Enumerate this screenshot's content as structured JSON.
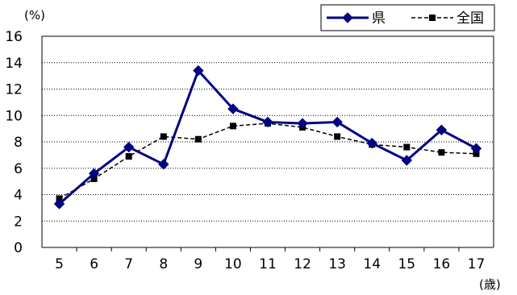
{
  "chart_data": {
    "type": "line",
    "y_unit_label": "(%)",
    "x_unit_label": "(歳)",
    "categories": [
      "5",
      "6",
      "7",
      "8",
      "9",
      "10",
      "11",
      "12",
      "13",
      "14",
      "15",
      "16",
      "17"
    ],
    "ylim": [
      0,
      16
    ],
    "y_ticks": [
      "0",
      "2",
      "4",
      "6",
      "8",
      "10",
      "12",
      "14",
      "16"
    ],
    "grid": "horizontal dotted",
    "legend_position": "top-right",
    "series": [
      {
        "name": "県",
        "color": "#000080",
        "marker": "diamond",
        "line": "solid",
        "values": [
          3.3,
          5.6,
          7.6,
          6.3,
          13.4,
          10.5,
          9.5,
          9.4,
          9.5,
          7.9,
          6.6,
          8.9,
          7.5
        ]
      },
      {
        "name": "全国",
        "color": "#000000",
        "marker": "square",
        "line": "dashed",
        "values": [
          3.7,
          5.2,
          6.9,
          8.4,
          8.2,
          9.2,
          9.4,
          9.1,
          8.4,
          7.8,
          7.6,
          7.2,
          7.1
        ]
      }
    ]
  }
}
